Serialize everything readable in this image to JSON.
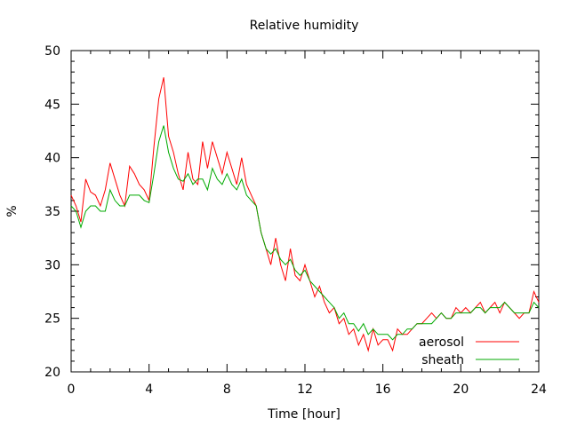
{
  "chart_data": {
    "type": "line",
    "title": "Relative humidity",
    "xlabel": "Time [hour]",
    "ylabel": "%",
    "xlim": [
      0,
      24
    ],
    "ylim": [
      20,
      50
    ],
    "xticks": [
      0,
      4,
      8,
      12,
      16,
      20,
      24
    ],
    "yticks": [
      20,
      25,
      30,
      35,
      40,
      45,
      50
    ],
    "grid": false,
    "legend_position": "bottom-right",
    "series": [
      {
        "name": "aerosol",
        "color": "#ff0000",
        "x": [
          0,
          0.25,
          0.5,
          0.75,
          1,
          1.25,
          1.5,
          1.75,
          2,
          2.25,
          2.5,
          2.75,
          3,
          3.25,
          3.5,
          3.75,
          4,
          4.25,
          4.5,
          4.75,
          5,
          5.25,
          5.5,
          5.75,
          6,
          6.25,
          6.5,
          6.75,
          7,
          7.25,
          7.5,
          7.75,
          8,
          8.25,
          8.5,
          8.75,
          9,
          9.25,
          9.5,
          9.75,
          10,
          10.25,
          10.5,
          10.75,
          11,
          11.25,
          11.5,
          11.75,
          12,
          12.25,
          12.5,
          12.75,
          13,
          13.25,
          13.5,
          13.75,
          14,
          14.25,
          14.5,
          14.75,
          15,
          15.25,
          15.5,
          15.75,
          16,
          16.25,
          16.5,
          16.75,
          17,
          17.25,
          17.5,
          17.75,
          18,
          18.25,
          18.5,
          18.75,
          19,
          19.25,
          19.5,
          19.75,
          20,
          20.25,
          20.5,
          20.75,
          21,
          21.25,
          21.5,
          21.75,
          22,
          22.25,
          22.5,
          22.75,
          23,
          23.25,
          23.5,
          23.75,
          24
        ],
        "y": [
          36.5,
          35.5,
          34.0,
          38.0,
          36.8,
          36.5,
          35.5,
          37.0,
          39.5,
          38.0,
          36.5,
          35.5,
          39.2,
          38.5,
          37.5,
          37.0,
          36.0,
          41.0,
          45.5,
          47.5,
          42.0,
          40.5,
          38.5,
          37.0,
          40.5,
          38.0,
          37.5,
          41.5,
          39.0,
          41.5,
          40.0,
          38.5,
          40.5,
          39.0,
          37.5,
          40.0,
          37.5,
          36.5,
          35.5,
          33.0,
          31.5,
          30.0,
          32.5,
          30.0,
          28.5,
          31.5,
          29.0,
          28.5,
          30.0,
          28.5,
          27.0,
          28.0,
          26.5,
          25.5,
          26.0,
          24.5,
          25.0,
          23.5,
          24.0,
          22.5,
          23.5,
          22.0,
          24.0,
          22.5,
          23.0,
          23.0,
          22.0,
          24.0,
          23.5,
          23.5,
          24.0,
          24.5,
          24.5,
          25.0,
          25.5,
          25.0,
          25.5,
          25.0,
          25.0,
          26.0,
          25.5,
          26.0,
          25.5,
          26.0,
          26.5,
          25.5,
          26.0,
          26.5,
          25.5,
          26.5,
          26.0,
          25.5,
          25.0,
          25.5,
          25.5,
          27.5,
          26.5
        ]
      },
      {
        "name": "sheath",
        "color": "#00aa00",
        "x": [
          0,
          0.25,
          0.5,
          0.75,
          1,
          1.25,
          1.5,
          1.75,
          2,
          2.25,
          2.5,
          2.75,
          3,
          3.25,
          3.5,
          3.75,
          4,
          4.25,
          4.5,
          4.75,
          5,
          5.25,
          5.5,
          5.75,
          6,
          6.25,
          6.5,
          6.75,
          7,
          7.25,
          7.5,
          7.75,
          8,
          8.25,
          8.5,
          8.75,
          9,
          9.25,
          9.5,
          9.75,
          10,
          10.25,
          10.5,
          10.75,
          11,
          11.25,
          11.5,
          11.75,
          12,
          12.25,
          12.5,
          12.75,
          13,
          13.25,
          13.5,
          13.75,
          14,
          14.25,
          14.5,
          14.75,
          15,
          15.25,
          15.5,
          15.75,
          16,
          16.25,
          16.5,
          16.75,
          17,
          17.25,
          17.5,
          17.75,
          18,
          18.25,
          18.5,
          18.75,
          19,
          19.25,
          19.5,
          19.75,
          20,
          20.25,
          20.5,
          20.75,
          21,
          21.25,
          21.5,
          21.75,
          22,
          22.25,
          22.5,
          22.75,
          23,
          23.25,
          23.5,
          23.75,
          24
        ],
        "y": [
          35.5,
          35.0,
          33.5,
          35.0,
          35.5,
          35.5,
          35.0,
          35.0,
          37.0,
          36.0,
          35.5,
          35.5,
          36.5,
          36.5,
          36.5,
          36.0,
          35.8,
          38.5,
          41.5,
          43.0,
          40.5,
          39.0,
          38.0,
          37.8,
          38.5,
          37.5,
          38.0,
          38.0,
          37.0,
          39.0,
          38.0,
          37.5,
          38.5,
          37.5,
          37.0,
          38.0,
          36.5,
          36.0,
          35.5,
          33.0,
          31.5,
          31.0,
          31.5,
          30.5,
          30.0,
          30.5,
          29.5,
          29.0,
          29.5,
          28.5,
          28.0,
          27.5,
          27.0,
          26.5,
          26.0,
          25.0,
          25.5,
          24.5,
          24.5,
          23.8,
          24.5,
          23.5,
          24.0,
          23.5,
          23.5,
          23.5,
          23.0,
          23.5,
          23.5,
          24.0,
          24.0,
          24.5,
          24.5,
          24.5,
          24.5,
          25.0,
          25.5,
          25.0,
          25.0,
          25.5,
          25.5,
          25.5,
          25.5,
          26.0,
          26.0,
          25.5,
          26.0,
          26.0,
          26.0,
          26.5,
          26.0,
          25.5,
          25.5,
          25.5,
          25.5,
          26.5,
          26.0
        ]
      }
    ]
  }
}
